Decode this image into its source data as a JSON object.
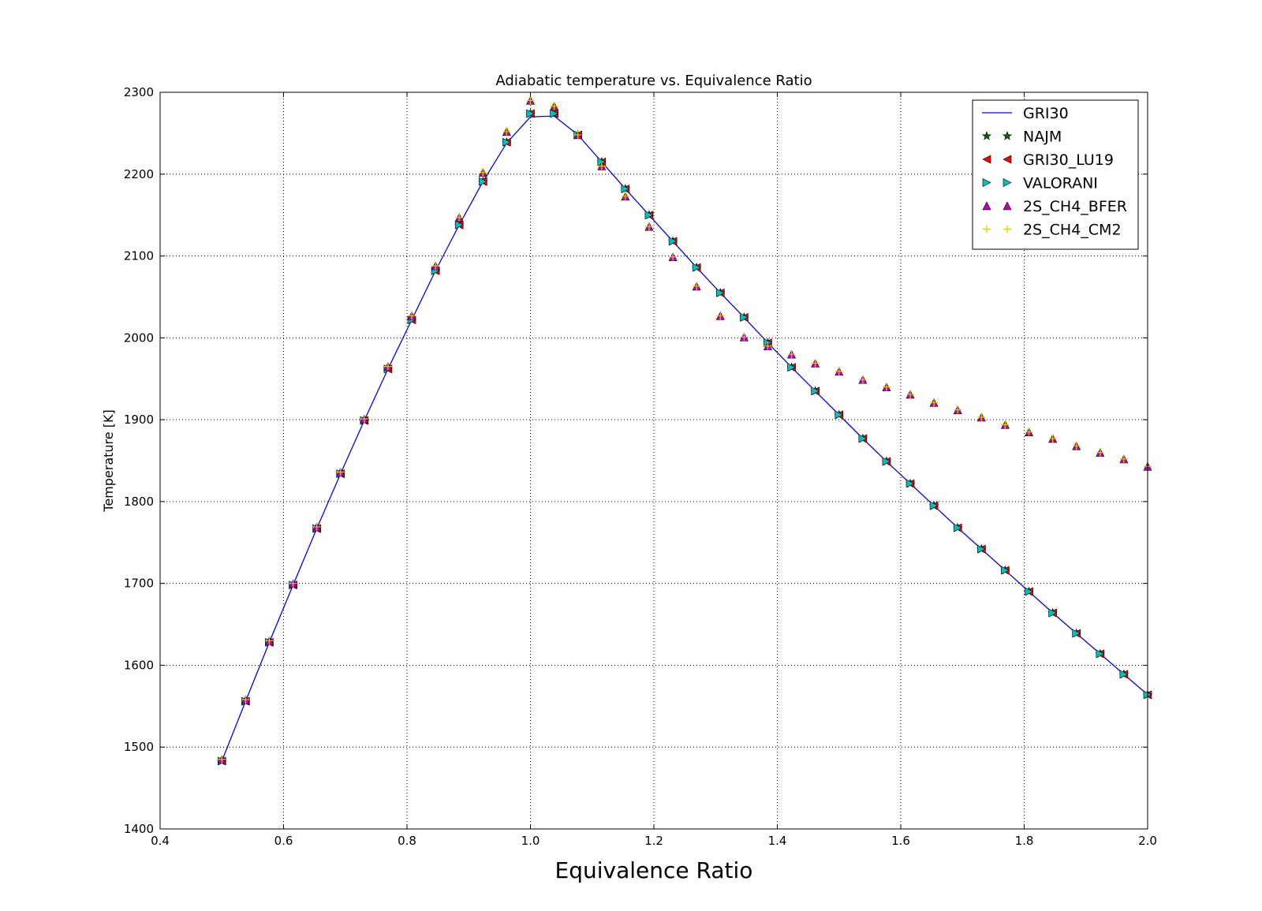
{
  "chart_data": {
    "type": "line",
    "title": "Adiabatic temperature vs. Equivalence Ratio",
    "xlabel": "Equivalence Ratio",
    "ylabel": "Temperature [K]",
    "xlim": [
      0.4,
      2.0
    ],
    "ylim": [
      1400,
      2300
    ],
    "xticks": [
      "0.4",
      "0.6",
      "0.8",
      "1.0",
      "1.2",
      "1.4",
      "1.6",
      "1.8",
      "2.0"
    ],
    "yticks": [
      "1400",
      "1500",
      "1600",
      "1700",
      "1800",
      "1900",
      "2000",
      "2100",
      "2200",
      "2300"
    ],
    "grid": true,
    "legend_position": "top-right",
    "x": [
      0.5,
      0.5385,
      0.5769,
      0.6154,
      0.6538,
      0.6923,
      0.7308,
      0.7692,
      0.8077,
      0.8462,
      0.8846,
      0.9231,
      0.9615,
      1.0,
      1.0385,
      1.0769,
      1.1154,
      1.1538,
      1.1923,
      1.2308,
      1.2692,
      1.3077,
      1.3462,
      1.3846,
      1.4231,
      1.4615,
      1.5,
      1.5385,
      1.5769,
      1.6154,
      1.6538,
      1.6923,
      1.7308,
      1.7692,
      1.8077,
      1.8462,
      1.8846,
      1.9231,
      1.9615,
      2.0
    ],
    "series": [
      {
        "name": "GRI30",
        "style": "line",
        "color": "#0000ff",
        "values": [
          1483,
          1556,
          1628,
          1698,
          1767,
          1834,
          1899,
          1962,
          2022,
          2082,
          2138,
          2191,
          2238,
          2270,
          2271,
          2248,
          2215,
          2182,
          2150,
          2118,
          2086,
          2055,
          2025,
          1994,
          1964,
          1935,
          1906,
          1877,
          1849,
          1822,
          1795,
          1768,
          1742,
          1716,
          1690,
          1664,
          1639,
          1614,
          1589,
          1564
        ]
      },
      {
        "name": "NAJM",
        "style": "marker",
        "marker": "star",
        "color": "#006400",
        "values": [
          1483,
          1556,
          1628,
          1698,
          1767,
          1834,
          1899,
          1962,
          2022,
          2082,
          2138,
          2191,
          2239,
          2274,
          2274,
          2248,
          2215,
          2182,
          2150,
          2118,
          2086,
          2055,
          2025,
          1994,
          1964,
          1935,
          1906,
          1877,
          1849,
          1822,
          1795,
          1768,
          1742,
          1716,
          1690,
          1664,
          1639,
          1614,
          1589,
          1564
        ]
      },
      {
        "name": "GRI30_LU19",
        "style": "marker",
        "marker": "triangle-left",
        "color": "#ff0000",
        "values": [
          1483,
          1556,
          1628,
          1698,
          1767,
          1834,
          1899,
          1962,
          2022,
          2082,
          2138,
          2191,
          2239,
          2274,
          2274,
          2248,
          2215,
          2182,
          2150,
          2118,
          2086,
          2055,
          2025,
          1994,
          1964,
          1935,
          1906,
          1877,
          1849,
          1822,
          1795,
          1768,
          1742,
          1716,
          1690,
          1664,
          1639,
          1614,
          1589,
          1564
        ]
      },
      {
        "name": "VALORANI",
        "style": "marker",
        "marker": "triangle-right",
        "color": "#00bfbf",
        "values": [
          1483,
          1556,
          1628,
          1698,
          1767,
          1834,
          1899,
          1962,
          2022,
          2082,
          2138,
          2191,
          2239,
          2274,
          2274,
          2248,
          2215,
          2182,
          2150,
          2118,
          2086,
          2055,
          2025,
          1994,
          1964,
          1935,
          1906,
          1877,
          1849,
          1822,
          1795,
          1768,
          1742,
          1716,
          1690,
          1664,
          1639,
          1614,
          1589,
          1564
        ]
      },
      {
        "name": "2S_CH4_BFER",
        "style": "marker",
        "marker": "triangle-up",
        "color": "#bf00bf",
        "values": [
          1485,
          1558,
          1630,
          1700,
          1769,
          1836,
          1901,
          1965,
          2027,
          2088,
          2147,
          2202,
          2252,
          2290,
          2283,
          2248,
          2210,
          2173,
          2136,
          2099,
          2063,
          2027,
          2001,
          1990,
          1980,
          1969,
          1959,
          1949,
          1940,
          1931,
          1921,
          1912,
          1903,
          1894,
          1885,
          1877,
          1868,
          1860,
          1852,
          1843
        ]
      },
      {
        "name": "2S_CH4_CM2",
        "style": "marker",
        "marker": "plus",
        "color": "#e6c800",
        "values": [
          1485,
          1558,
          1630,
          1700,
          1769,
          1836,
          1901,
          1965,
          2027,
          2088,
          2147,
          2202,
          2252,
          2290,
          2283,
          2248,
          2210,
          2173,
          2136,
          2099,
          2063,
          2027,
          2001,
          1990,
          1980,
          1969,
          1959,
          1949,
          1940,
          1931,
          1921,
          1912,
          1903,
          1894,
          1885,
          1877,
          1868,
          1860,
          1852,
          1843
        ]
      }
    ]
  }
}
